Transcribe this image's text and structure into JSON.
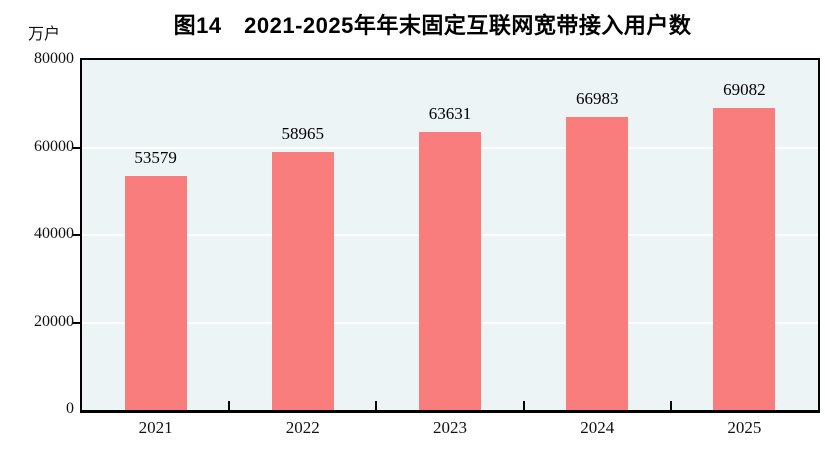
{
  "chart_data": {
    "type": "bar",
    "title": "图14　2021-2025年年末固定互联网宽带接入用户数",
    "unit_label": "万户",
    "xlabel": "",
    "ylabel": "万户",
    "categories": [
      "2021",
      "2022",
      "2023",
      "2024",
      "2025"
    ],
    "values": [
      53579,
      58965,
      63631,
      66983,
      69082
    ],
    "data_labels_shown": true,
    "ylim": [
      0,
      80000
    ],
    "yticks": [
      0,
      20000,
      40000,
      60000,
      80000
    ],
    "gridlines": [
      20000,
      40000,
      60000
    ],
    "grid": "horizontal",
    "legend_position": "none",
    "colors": {
      "bar": "#FA7D7E",
      "plot_background": "#EDF4F6",
      "gridline": "#FFFFFF",
      "axis": "#000000",
      "text": "#000000",
      "page_background": "#FFFFFF"
    }
  }
}
